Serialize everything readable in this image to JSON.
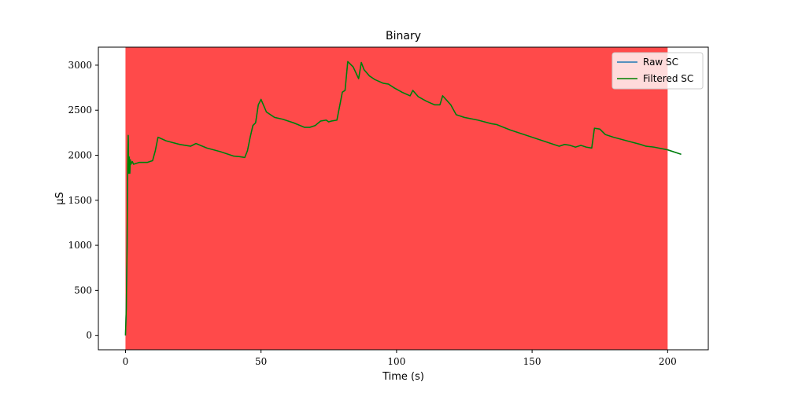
{
  "chart_data": {
    "type": "line",
    "title": "Binary",
    "xlabel": "Time (s)",
    "ylabel": "μS",
    "xlim": [
      -10,
      215
    ],
    "ylim": [
      -160,
      3200
    ],
    "x_ticks": [
      0,
      50,
      100,
      150,
      200
    ],
    "y_ticks": [
      0,
      500,
      1000,
      1500,
      2000,
      2500,
      3000
    ],
    "grid": false,
    "legend_position": "top-right",
    "shaded_region": {
      "x_start": 0,
      "x_end": 200,
      "color": "#ff4a4a"
    },
    "series": [
      {
        "name": "Raw SC",
        "color": "#1f77b4",
        "x": [
          0,
          0.3,
          0.6,
          0.8,
          1.0,
          1.2,
          1.4,
          1.6,
          1.8,
          2.0,
          2.5,
          3,
          5,
          8,
          10,
          11,
          12,
          15,
          20,
          24,
          26,
          30,
          35,
          40,
          42,
          44,
          45,
          46,
          47,
          48,
          49,
          50,
          52,
          55,
          58,
          62,
          66,
          68,
          70,
          72,
          74,
          75,
          76,
          78,
          80,
          81,
          82,
          84,
          86,
          87,
          88,
          90,
          92,
          95,
          97,
          99,
          102,
          105,
          106,
          108,
          111,
          114,
          116,
          117,
          120,
          122,
          123,
          125,
          130,
          135,
          137,
          142,
          150,
          155,
          160,
          162,
          164,
          166,
          168,
          170,
          172,
          173,
          175,
          177,
          180,
          185,
          190,
          192,
          195,
          200,
          205
        ],
        "y": [
          0,
          300,
          1000,
          1900,
          2220,
          1800,
          1980,
          1800,
          1950,
          1900,
          1930,
          1900,
          1920,
          1920,
          1940,
          2050,
          2200,
          2160,
          2120,
          2100,
          2130,
          2080,
          2040,
          1990,
          1985,
          1975,
          2050,
          2200,
          2330,
          2360,
          2560,
          2620,
          2480,
          2420,
          2400,
          2360,
          2310,
          2310,
          2330,
          2380,
          2390,
          2370,
          2380,
          2390,
          2700,
          2720,
          3040,
          2980,
          2850,
          3030,
          2950,
          2880,
          2840,
          2800,
          2790,
          2750,
          2700,
          2660,
          2720,
          2650,
          2600,
          2560,
          2560,
          2660,
          2560,
          2450,
          2440,
          2420,
          2390,
          2350,
          2340,
          2280,
          2200,
          2150,
          2100,
          2120,
          2110,
          2090,
          2110,
          2090,
          2080,
          2300,
          2290,
          2230,
          2200,
          2160,
          2120,
          2100,
          2090,
          2060,
          2010
        ]
      },
      {
        "name": "Filtered SC",
        "color": "#008000",
        "x": [
          0,
          0.3,
          0.6,
          0.8,
          1.0,
          1.2,
          1.4,
          1.6,
          1.8,
          2.0,
          2.5,
          3,
          5,
          8,
          10,
          11,
          12,
          15,
          20,
          24,
          26,
          30,
          35,
          40,
          42,
          44,
          45,
          46,
          47,
          48,
          49,
          50,
          52,
          55,
          58,
          62,
          66,
          68,
          70,
          72,
          74,
          75,
          76,
          78,
          80,
          81,
          82,
          84,
          86,
          87,
          88,
          90,
          92,
          95,
          97,
          99,
          102,
          105,
          106,
          108,
          111,
          114,
          116,
          117,
          120,
          122,
          123,
          125,
          130,
          135,
          137,
          142,
          150,
          155,
          160,
          162,
          164,
          166,
          168,
          170,
          172,
          173,
          175,
          177,
          180,
          185,
          190,
          192,
          195,
          200,
          205
        ],
        "y": [
          0,
          300,
          1000,
          1900,
          2220,
          1800,
          1980,
          1800,
          1950,
          1900,
          1930,
          1900,
          1920,
          1920,
          1940,
          2050,
          2200,
          2160,
          2120,
          2100,
          2130,
          2080,
          2040,
          1990,
          1985,
          1975,
          2050,
          2200,
          2330,
          2360,
          2560,
          2620,
          2480,
          2420,
          2400,
          2360,
          2310,
          2310,
          2330,
          2380,
          2390,
          2370,
          2380,
          2390,
          2700,
          2720,
          3040,
          2980,
          2850,
          3030,
          2950,
          2880,
          2840,
          2800,
          2790,
          2750,
          2700,
          2660,
          2720,
          2650,
          2600,
          2560,
          2560,
          2660,
          2560,
          2450,
          2440,
          2420,
          2390,
          2350,
          2340,
          2280,
          2200,
          2150,
          2100,
          2120,
          2110,
          2090,
          2110,
          2090,
          2080,
          2300,
          2290,
          2230,
          2200,
          2160,
          2120,
          2100,
          2090,
          2060,
          2010
        ]
      }
    ]
  }
}
